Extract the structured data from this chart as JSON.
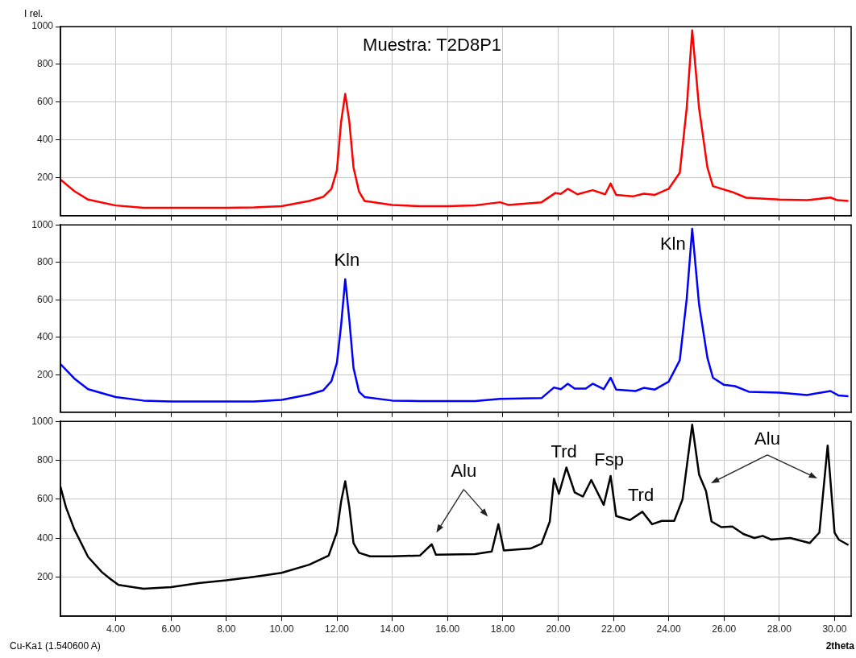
{
  "chart_data": [
    {
      "type": "line",
      "ylabel": "I rel.",
      "xlim": [
        2,
        30.6
      ],
      "xticks": [
        4,
        6,
        8,
        10,
        12,
        14,
        16,
        18,
        20,
        22,
        24,
        26,
        28,
        30
      ],
      "ylim": [
        0,
        1000
      ],
      "yticks": [
        200,
        400,
        600,
        800,
        1000
      ],
      "grid": true,
      "tick_labels": "y",
      "annotations": [
        "Muestra: T2D8P1"
      ],
      "series": [
        {
          "color": "#ff0000",
          "x": [
            2,
            2.5,
            3,
            4,
            5,
            6,
            7,
            8,
            9,
            10,
            11,
            11.5,
            11.8,
            12,
            12.15,
            12.3,
            12.45,
            12.6,
            12.8,
            13,
            14,
            15,
            16,
            17,
            17.9,
            18.2,
            19.4,
            19.9,
            20.1,
            20.35,
            20.7,
            21.25,
            21.7,
            21.9,
            22.1,
            22.7,
            23.1,
            23.5,
            24,
            24.4,
            24.65,
            24.85,
            25.1,
            25.4,
            25.6,
            26.3,
            26.8,
            28,
            29,
            29.85,
            30.1,
            30.5
          ],
          "values": [
            191,
            130,
            85,
            54,
            42,
            42,
            42,
            42,
            44,
            50,
            78,
            99,
            141,
            240,
            495,
            644,
            495,
            255,
            127,
            78,
            57,
            50,
            50,
            55,
            71,
            57,
            71,
            120,
            115,
            142,
            113,
            135,
            113,
            170,
            110,
            102,
            116,
            110,
            142,
            227,
            567,
            980,
            567,
            255,
            156,
            125,
            95,
            85,
            82,
            96,
            82,
            78
          ]
        }
      ]
    },
    {
      "type": "line",
      "xlim": [
        2,
        30.6
      ],
      "xticks": [
        4,
        6,
        8,
        10,
        12,
        14,
        16,
        18,
        20,
        22,
        24,
        26,
        28,
        30
      ],
      "ylim": [
        0,
        1000
      ],
      "yticks": [
        200,
        400,
        600,
        800,
        1000
      ],
      "grid": true,
      "tick_labels": "y",
      "annotations": [
        {
          "text": "Kln",
          "x": 12.3,
          "y": 710
        },
        {
          "text": "Kln",
          "x": 24.85,
          "y": 979
        }
      ],
      "series": [
        {
          "color": "#0000ff",
          "x": [
            2,
            2.5,
            3,
            4,
            5,
            6,
            7,
            8,
            9,
            10,
            11,
            11.5,
            11.8,
            12,
            12.15,
            12.3,
            12.45,
            12.6,
            12.8,
            13,
            14,
            15,
            17,
            17.9,
            19.4,
            19.85,
            20.1,
            20.35,
            20.6,
            21,
            21.25,
            21.65,
            21.9,
            22.1,
            22.8,
            23.1,
            23.5,
            24,
            24.4,
            24.65,
            24.85,
            25.1,
            25.4,
            25.6,
            26,
            26.4,
            26.9,
            28,
            29,
            29.85,
            30.15,
            30.5
          ],
          "values": [
            257,
            180,
            123,
            81,
            62,
            57,
            57,
            57,
            57,
            66,
            95,
            116,
            165,
            264,
            462,
            710,
            491,
            236,
            109,
            81,
            62,
            59,
            59,
            71,
            75,
            132,
            123,
            152,
            126,
            126,
            152,
            123,
            184,
            121,
            113,
            130,
            121,
            163,
            277,
            603,
            979,
            574,
            291,
            184,
            146,
            139,
            109,
            104,
            92,
            113,
            89,
            85
          ]
        }
      ]
    },
    {
      "type": "line",
      "xlabel": "2theta",
      "xlim": [
        2,
        30.6
      ],
      "xticks": [
        {
          "value": 4,
          "label": "4.00"
        },
        {
          "value": 6,
          "label": "6.00"
        },
        {
          "value": 8,
          "label": "8.00"
        },
        {
          "value": 10,
          "label": "10.00"
        },
        {
          "value": 12,
          "label": "12.00"
        },
        {
          "value": 14,
          "label": "14.00"
        },
        {
          "value": 16,
          "label": "16.00"
        },
        {
          "value": 18,
          "label": "18.00"
        },
        {
          "value": 20,
          "label": "20.00"
        },
        {
          "value": 22,
          "label": "22.00"
        },
        {
          "value": 24,
          "label": "24.00"
        },
        {
          "value": 26,
          "label": "26.00"
        },
        {
          "value": 28,
          "label": "28.00"
        },
        {
          "value": 30,
          "label": "30.00"
        }
      ],
      "ylim": [
        0,
        1000
      ],
      "yticks": [
        200,
        400,
        600,
        800,
        1000
      ],
      "grid": true,
      "annotations": [
        "Alu",
        {
          "text": "Trd",
          "x": 20.3,
          "y": 763
        },
        {
          "text": "Fsp",
          "x": 21.9,
          "y": 720
        },
        {
          "text": "Trd",
          "x": 23.05,
          "y": 536
        },
        "Alu",
        "Cu-Ka1 (1.540600 A)"
      ],
      "series": [
        {
          "color": "#000000",
          "x": [
            2,
            2.2,
            2.5,
            3,
            3.5,
            3.8,
            4.1,
            5,
            6,
            7,
            8,
            9,
            10,
            11,
            11.7,
            12,
            12.15,
            12.3,
            12.45,
            12.6,
            12.8,
            13.2,
            14,
            15,
            15.43,
            15.58,
            17,
            17.6,
            17.84,
            18.04,
            19,
            19.4,
            19.7,
            19.85,
            20.03,
            20.3,
            20.6,
            20.9,
            21.2,
            21.65,
            21.9,
            22.1,
            22.6,
            23.05,
            23.4,
            23.75,
            24.2,
            24.5,
            24.85,
            25.1,
            25.35,
            25.55,
            25.9,
            26.3,
            26.7,
            27.1,
            27.4,
            27.7,
            28.4,
            29.1,
            29.45,
            29.75,
            30,
            30.15,
            30.5
          ],
          "values": [
            665,
            559,
            446,
            304,
            226,
            191,
            160,
            141,
            149,
            170,
            184,
            202,
            222,
            264,
            311,
            431,
            587,
            693,
            559,
            375,
            325,
            307,
            307,
            311,
            369,
            315,
            318,
            332,
            472,
            337,
            347,
            372,
            486,
            706,
            628,
            763,
            635,
            614,
            699,
            571,
            720,
            514,
            493,
            536,
            472,
            489,
            489,
            599,
            983,
            727,
            642,
            486,
            457,
            460,
            422,
            401,
            412,
            393,
            401,
            375,
            429,
            876,
            429,
            393,
            365
          ]
        }
      ]
    }
  ]
}
